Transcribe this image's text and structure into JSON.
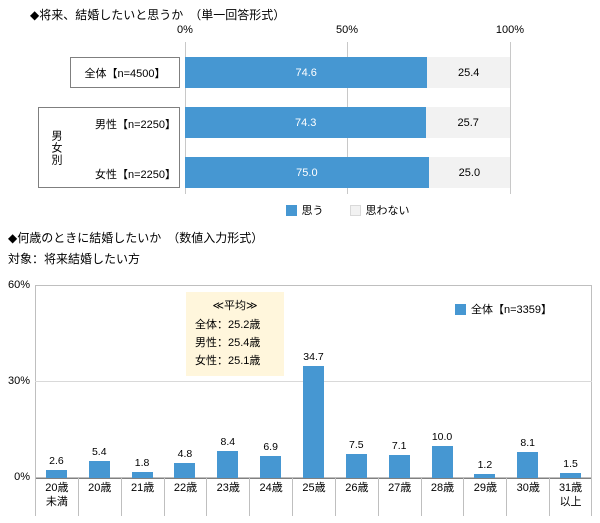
{
  "accent_blue": "#4697D2",
  "no_fill_gray": "#F2F2F2",
  "chart_data": [
    {
      "type": "bar",
      "orientation": "horizontal",
      "stacked": true,
      "title": "◆将来、結婚したいと思うか　（単一回答形式）",
      "categories": [
        "全体【n=4500】",
        "男性【n=2250】",
        "女性【n=2250】"
      ],
      "row_group": {
        "label": "男女別",
        "rows": [
          1,
          2
        ]
      },
      "x_ticks": [
        "0%",
        "50%",
        "100%"
      ],
      "xlim": [
        0,
        100
      ],
      "grid": true,
      "legend_position": "bottom",
      "series": [
        {
          "name": "思う",
          "color": "#4697D2",
          "values": [
            74.6,
            74.3,
            75.0
          ]
        },
        {
          "name": "思わない",
          "color": "#F2F2F2",
          "values": [
            25.4,
            25.7,
            25.0
          ]
        }
      ]
    },
    {
      "type": "bar",
      "orientation": "vertical",
      "title": "◆何歳のときに結婚したいか　（数値入力形式）",
      "subtitle": "対象：将来結婚したい方",
      "categories": [
        "20歳\n未満",
        "20歳",
        "21歳",
        "22歳",
        "23歳",
        "24歳",
        "25歳",
        "26歳",
        "27歳",
        "28歳",
        "29歳",
        "30歳",
        "31歳\n以上"
      ],
      "values": [
        2.6,
        5.4,
        1.8,
        4.8,
        8.4,
        6.9,
        34.7,
        7.5,
        7.1,
        10.0,
        1.2,
        8.1,
        1.5
      ],
      "ylim": [
        0,
        60
      ],
      "y_ticks": [
        "60%",
        "30%",
        "0%"
      ],
      "gridline_at": 30,
      "legend": "全体【n=3359】",
      "legend_position": "top-right",
      "bar_color": "#4697D2",
      "annotation": {
        "heading": "≪平均≫",
        "lines": [
          "全体：25.2歳",
          "男性：25.4歳",
          "女性：25.1歳"
        ],
        "bg": "#FFF6DC"
      }
    }
  ]
}
